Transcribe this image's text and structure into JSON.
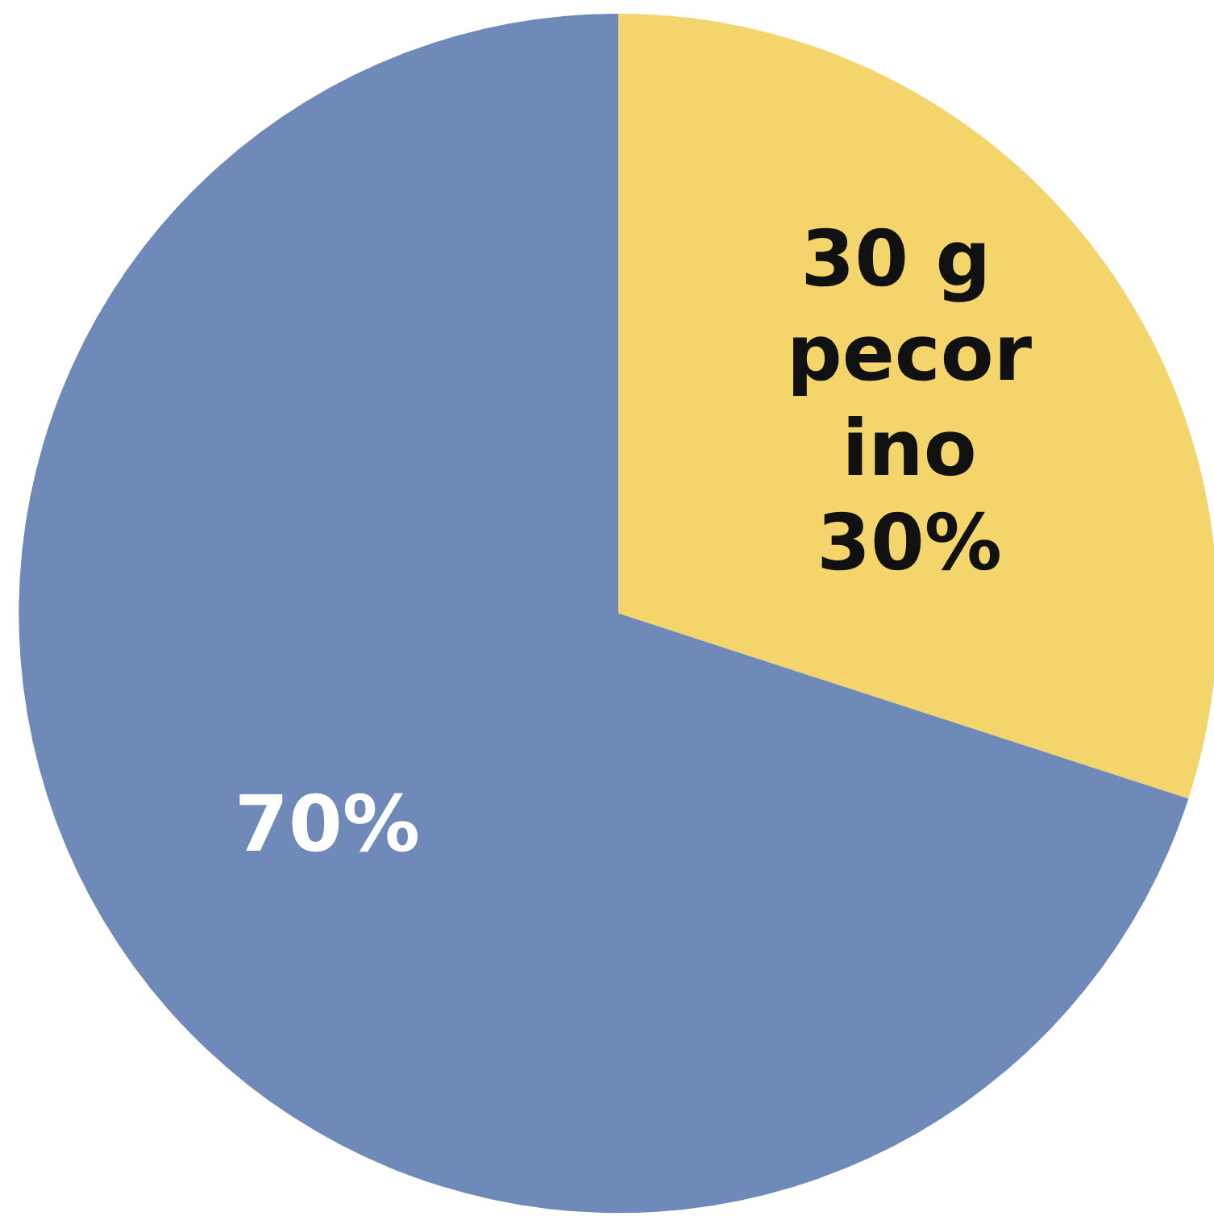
{
  "chart_data": {
    "type": "pie",
    "categories": [
      "30 g pecorino",
      null
    ],
    "values": [
      30,
      70
    ],
    "colors": [
      "#f4d56c",
      "#6f8ab8"
    ],
    "value_labels": [
      "30%",
      "70%"
    ]
  }
}
